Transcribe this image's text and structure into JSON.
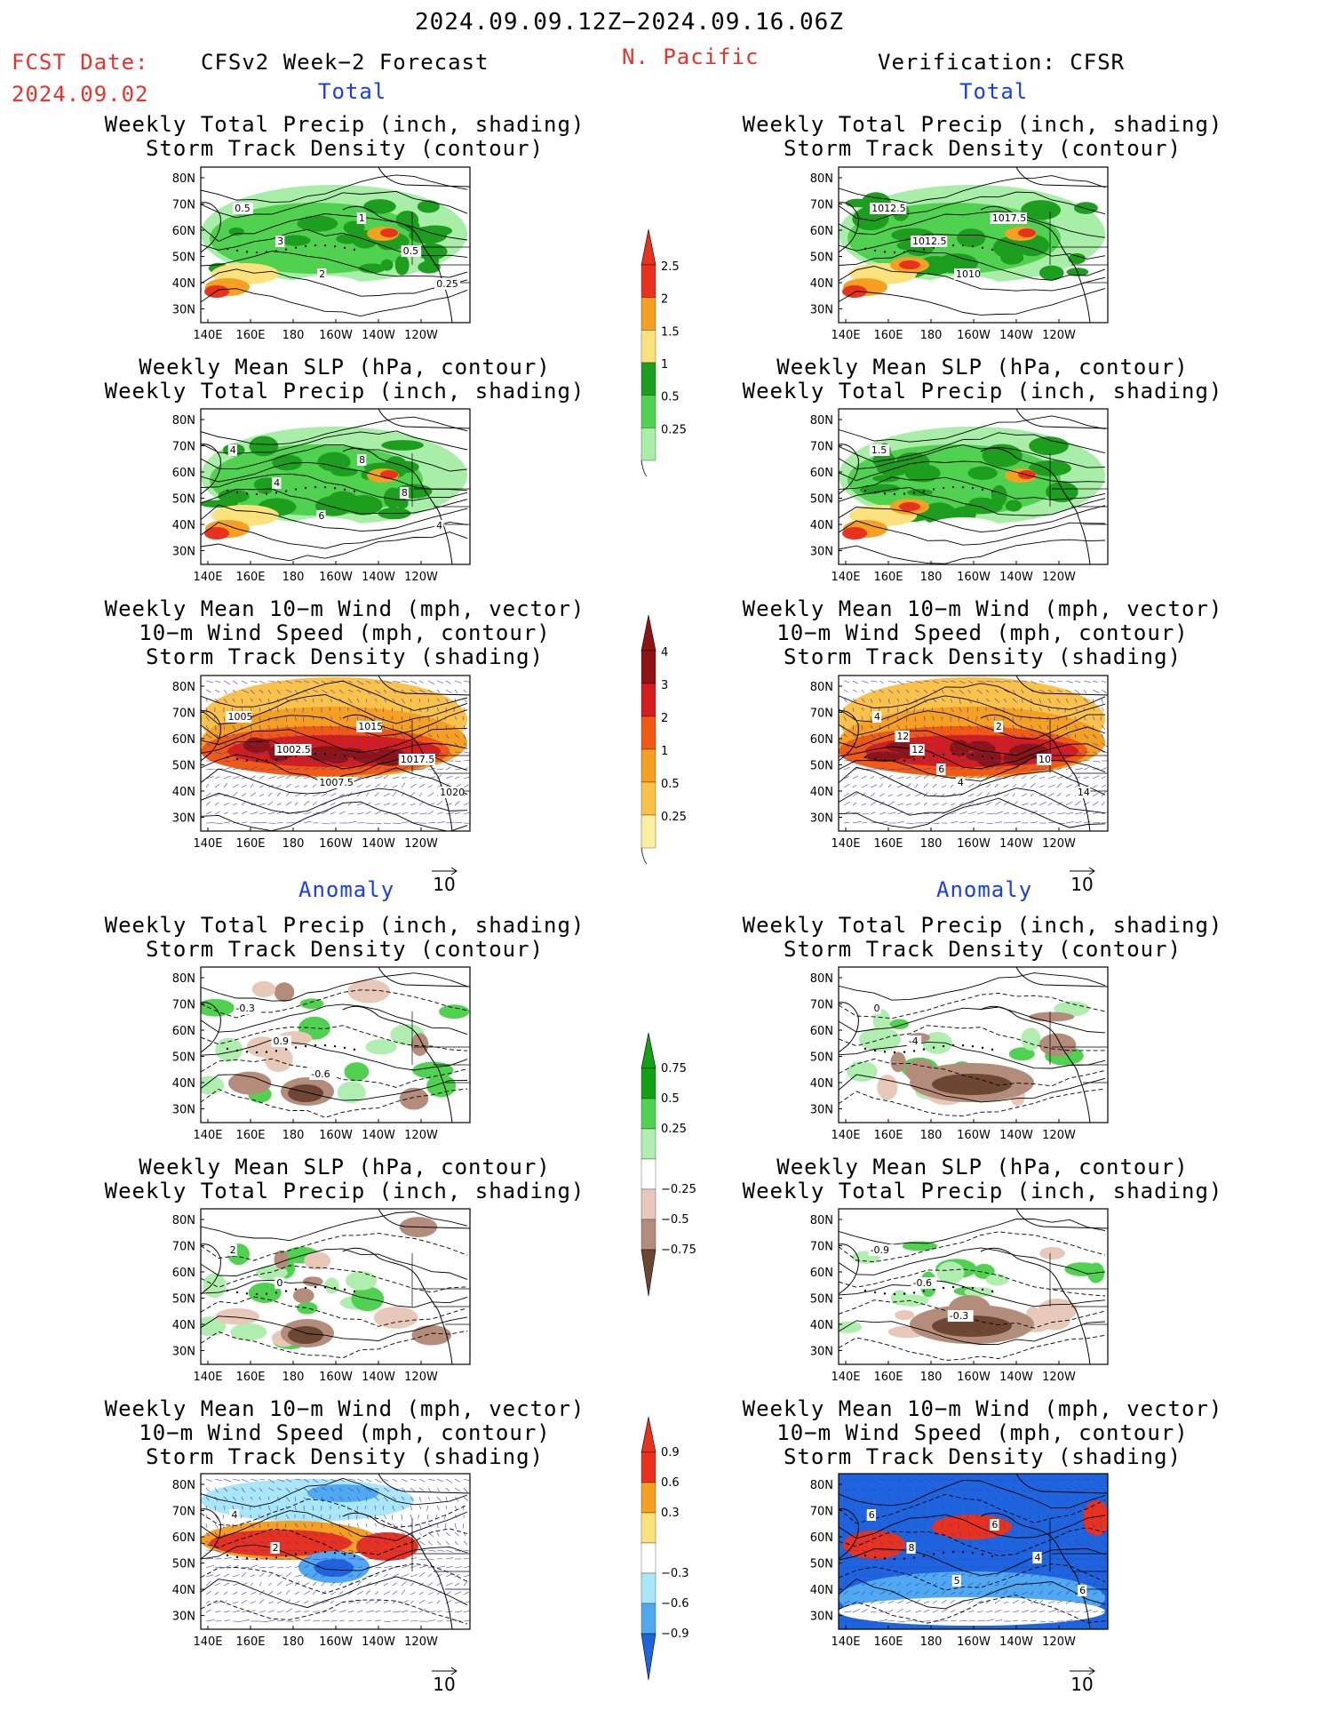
{
  "header": {
    "period": "2024.09.09.12Z−2024.09.16.06Z",
    "fcst_label": "FCST Date:",
    "fcst_date": "2024.09.02",
    "left_title": "CFSv2 Week−2 Forecast",
    "region": "N. Pacific",
    "right_title": "Verification: CFSR"
  },
  "sections": {
    "total": "Total",
    "anomaly": "Anomaly"
  },
  "panel_titles": {
    "precip_track": [
      "Weekly Total Precip (inch, shading)",
      "Storm Track Density (contour)"
    ],
    "slp_precip": [
      "Weekly Mean SLP (hPa, contour)",
      "Weekly Total Precip (inch, shading)"
    ],
    "wind_track": [
      "Weekly Mean 10−m Wind (mph, vector)",
      "10−m Wind Speed (mph, contour)",
      "Storm Track Density (shading)"
    ]
  },
  "axes": {
    "lat_ticks": [
      "80N",
      "70N",
      "60N",
      "50N",
      "40N",
      "30N"
    ],
    "lon_ticks": [
      "140E",
      "160E",
      "180",
      "160W",
      "140W",
      "120W"
    ]
  },
  "vector_ref": "10",
  "contour_labels": {
    "p1": [
      "0.5",
      "3",
      "2",
      "1",
      "0.5",
      "0.25"
    ],
    "p2": [
      "1012.5",
      "1012.5",
      "1010",
      "1017.5"
    ],
    "p3": [
      "4",
      "4",
      "6",
      "8",
      "8",
      "4"
    ],
    "p4": [
      "1.5"
    ],
    "p5": [
      "1005",
      "1002.5",
      "1007.5",
      "1015",
      "1017.5",
      "1020"
    ],
    "p6": [
      "4",
      "12",
      "4",
      "2",
      "10",
      "14",
      "12",
      "6"
    ],
    "p7": [
      "-0.3",
      "0.9",
      "-0.6"
    ],
    "p8": [
      "0",
      "-4"
    ],
    "p9": [
      "2",
      "0"
    ],
    "p10": [
      "-0.9",
      "-0.6",
      "-0.3"
    ],
    "p11": [
      "4",
      "2"
    ],
    "p12": [
      "6",
      "8",
      "5",
      "6",
      "4",
      "6"
    ]
  },
  "colorbars": [
    {
      "name": "precip-total",
      "labels": [
        "2.5",
        "2",
        "1.5",
        "1",
        "0.5",
        "0.25"
      ],
      "colors": [
        "#e8321e",
        "#f5a021",
        "#fbe27c",
        "#1e9e1e",
        "#50d250",
        "#a8eea8"
      ]
    },
    {
      "name": "storm-track-total",
      "labels": [
        "4",
        "3",
        "2",
        "1",
        "0.5",
        "0.25"
      ],
      "colors": [
        "#8c1414",
        "#d21e1e",
        "#f05a14",
        "#f5a021",
        "#fbc24a",
        "#fbee9e"
      ]
    },
    {
      "name": "precip-anomaly",
      "labels": [
        "0.75",
        "0.5",
        "0.25",
        "−0.25",
        "−0.5",
        "−0.75"
      ],
      "colors": [
        "#14a014",
        "#50d250",
        "#b0eeb0",
        "#ffffff",
        "#e8c8b8",
        "#b48c7c",
        "#6e4634"
      ]
    },
    {
      "name": "storm-track-anomaly",
      "labels": [
        "0.9",
        "0.6",
        "0.3",
        "−0.3",
        "−0.6",
        "−0.9"
      ],
      "colors": [
        "#e8321e",
        "#f5a021",
        "#fbe27c",
        "#ffffff",
        "#a8e6f8",
        "#50a8f0",
        "#1e64dc"
      ]
    }
  ]
}
